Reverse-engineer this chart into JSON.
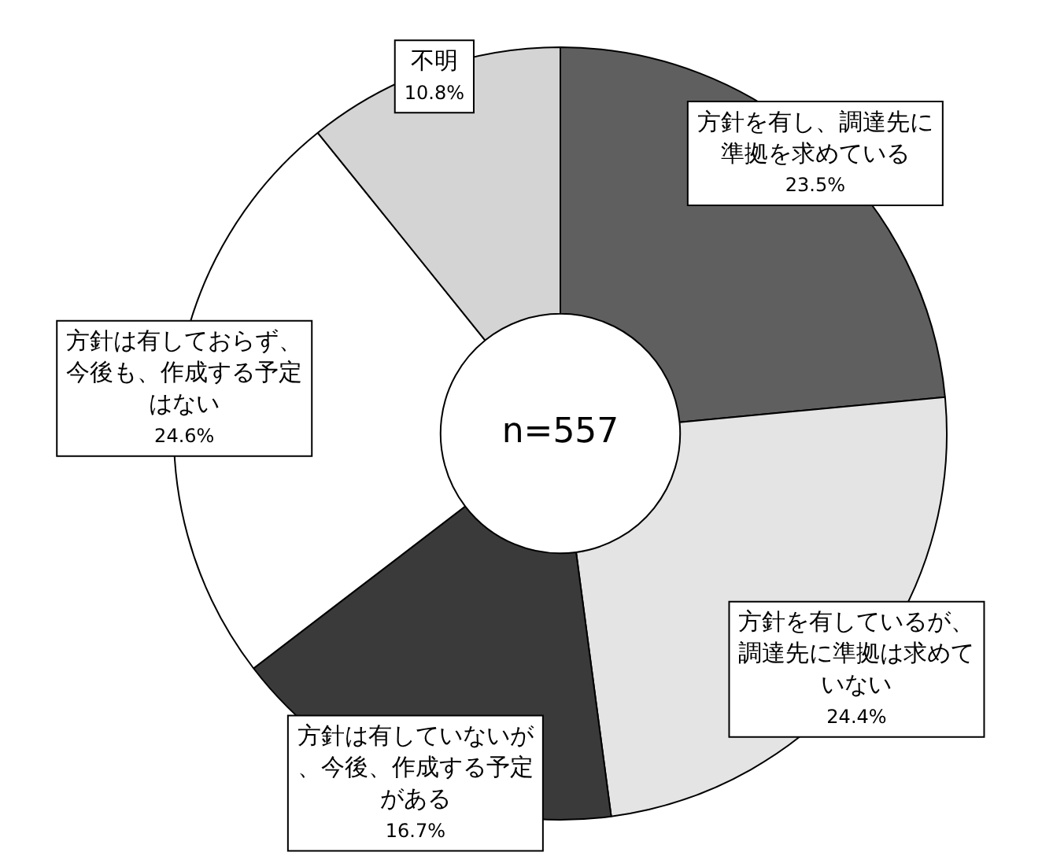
{
  "chart_data": {
    "type": "donut",
    "categories": [
      "方針を有し、調達先に準拠を求めている",
      "方針を有しているが、調達先に準拠は求めていない",
      "方針は有していないが、今後、作成する予定がある",
      "方針は有しておらず、今後も、作成する予定はない",
      "不明"
    ],
    "values": [
      23.5,
      24.4,
      16.7,
      24.6,
      10.8
    ],
    "value_labels": [
      "23.5%",
      "24.4%",
      "16.7%",
      "24.6%",
      "10.8%"
    ],
    "colors": [
      "#5f5f5f",
      "#e4e4e4",
      "#3a3a3a",
      "#ffffff",
      "#d4d4d4"
    ],
    "annotations": [
      "n=557"
    ],
    "legend": false
  }
}
